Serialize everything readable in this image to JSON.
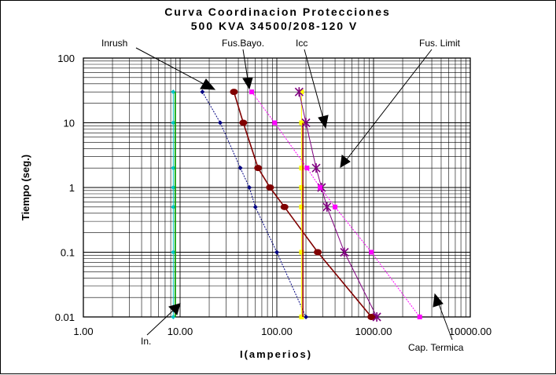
{
  "chart_data": {
    "type": "line",
    "title": "Curva Coordinacion Protecciones",
    "subtitle": "500 KVA 34500/208-120 V",
    "xlabel": "I(amperios)",
    "ylabel": "Tiempo (seg.)",
    "xscale": "log",
    "yscale": "log",
    "xlim": [
      1,
      10000
    ],
    "ylim": [
      0.01,
      100
    ],
    "grid": true,
    "x_tick_labels": [
      "1.00",
      "10.00",
      "100.00",
      "1000.00",
      "10000.00"
    ],
    "y_tick_labels": [
      "0.01",
      "0.1",
      "1",
      "10",
      "100"
    ],
    "series": [
      {
        "name": "In.",
        "color": "#00c0c0",
        "marker": "diamond",
        "x": [
          8.5,
          8.5,
          8.5,
          8.5,
          8.5,
          8.5,
          8.5
        ],
        "y": [
          30,
          10,
          2,
          1,
          0.5,
          0.1,
          0.01
        ]
      },
      {
        "name": "In.",
        "color": "#00b000",
        "marker": "none",
        "x": [
          8.9,
          8.9
        ],
        "y": [
          30,
          0.01
        ]
      },
      {
        "name": "Inrush",
        "color": "#000080",
        "marker": "diamond",
        "x": [
          17,
          26,
          42,
          52,
          60,
          100,
          200
        ],
        "y": [
          30,
          10,
          2,
          1,
          0.5,
          0.1,
          0.01
        ]
      },
      {
        "name": "Fus.Bayo.",
        "color": "#800000",
        "marker": "circle",
        "x": [
          36,
          45,
          64,
          85,
          120,
          265,
          950
        ],
        "y": [
          30,
          10,
          2,
          1,
          0.5,
          0.1,
          0.01
        ]
      },
      {
        "name": "Icc",
        "color": "#ffff00",
        "marker": "square",
        "x": [
          180,
          180,
          180,
          180,
          180,
          180,
          180
        ],
        "y": [
          30,
          10,
          2,
          1,
          0.5,
          0.1,
          0.01
        ]
      },
      {
        "name": "Icc",
        "color": "#a00000",
        "marker": "none",
        "x": [
          186,
          186
        ],
        "y": [
          10,
          0.01
        ]
      },
      {
        "name": "Fus. Limit",
        "color": "#800080",
        "marker": "star",
        "x": [
          170,
          200,
          255,
          290,
          330,
          500,
          1080
        ],
        "y": [
          30,
          10,
          2,
          1,
          0.5,
          0.1,
          0.01
        ]
      },
      {
        "name": "Cap. Termica",
        "color": "#ff00ff",
        "marker": "square",
        "x": [
          55,
          95,
          205,
          280,
          400,
          950,
          3000
        ],
        "y": [
          30,
          10,
          2,
          1,
          0.5,
          0.1,
          0.01
        ]
      }
    ],
    "annotations": [
      "Inrush",
      "Fus.Bayo.",
      "Icc",
      "Fus. Limit",
      "In.",
      "Cap. Termica"
    ]
  }
}
